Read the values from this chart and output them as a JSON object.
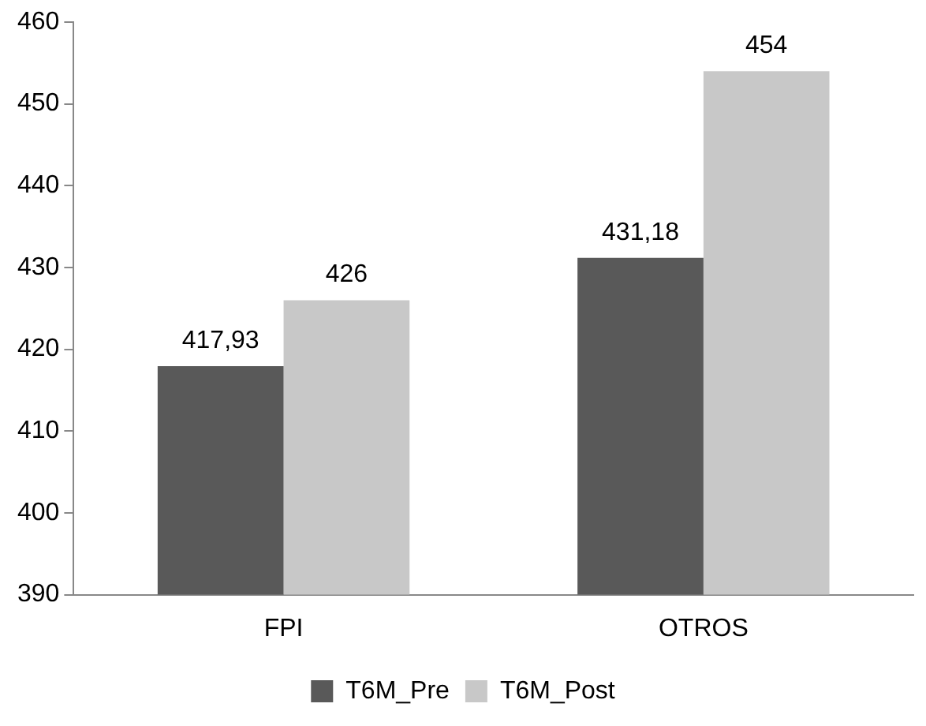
{
  "chart_data": {
    "type": "bar",
    "categories": [
      "FPI",
      "OTROS"
    ],
    "series": [
      {
        "name": "T6M_Pre",
        "color": "#595959",
        "values": [
          417.93,
          431.18
        ],
        "value_labels": [
          "417,93",
          "431,18"
        ]
      },
      {
        "name": "T6M_Post",
        "color": "#c8c8c8",
        "values": [
          426,
          454
        ],
        "value_labels": [
          "426",
          "454"
        ]
      }
    ],
    "ylim": [
      390,
      460
    ],
    "yticks": [
      390,
      400,
      410,
      420,
      430,
      440,
      450,
      460
    ],
    "grid": false,
    "legend": "bottom"
  }
}
